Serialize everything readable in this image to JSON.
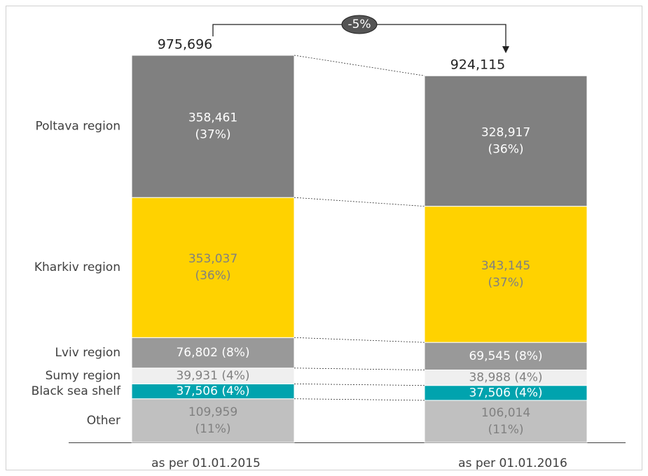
{
  "chart_data": {
    "type": "stacked_bar",
    "categories": [
      "as per 01.01.2015",
      "as per 01.01.2016"
    ],
    "series": [
      {
        "name": "Other",
        "color": "#c0c0c0",
        "values": [
          109959,
          106014
        ],
        "value_labels": [
          "109,959 (11%)",
          "106,014 (11%)"
        ]
      },
      {
        "name": "Black sea shelf",
        "color": "#00a3ae",
        "values": [
          37506,
          37506
        ],
        "value_labels": [
          "37,506 (4%)",
          "37,506 (4%)"
        ]
      },
      {
        "name": "Sumy region",
        "color": "#efefef",
        "values": [
          39931,
          38988
        ],
        "value_labels": [
          "39,931 (4%)",
          "38,988 (4%)"
        ]
      },
      {
        "name": "Lviv region",
        "color": "#999999",
        "values": [
          76802,
          69545
        ],
        "value_labels": [
          "76,802 (8%)",
          "69,545 (8%)"
        ]
      },
      {
        "name": "Kharkiv region",
        "color": "#ffd200",
        "values": [
          353037,
          343145
        ],
        "value_labels": [
          "353,037 (36%)",
          "343,145 (37%)"
        ]
      },
      {
        "name": "Poltava region",
        "color": "#808080",
        "values": [
          358461,
          328917
        ],
        "value_labels": [
          "358,461 (37%)",
          "328,917 (36%)"
        ]
      }
    ],
    "totals": {
      "values": [
        975696,
        924115
      ],
      "value_labels": [
        "975,696",
        "924,115"
      ]
    },
    "change_label": "-5%"
  }
}
